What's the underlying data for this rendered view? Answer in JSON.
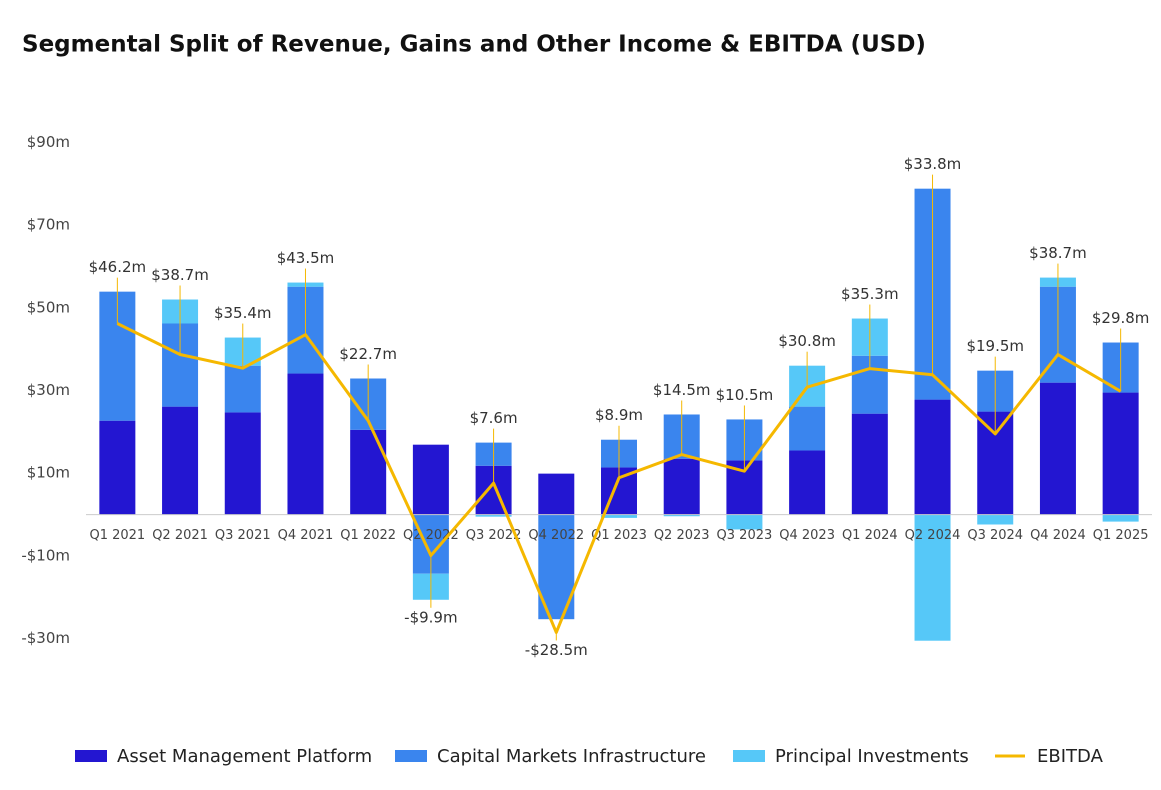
{
  "chart_data": {
    "type": "bar",
    "title": "Segmental Split of Revenue, Gains and Other Income & EBITDA (USD)",
    "categories": [
      "Q1 2021",
      "Q2 2021",
      "Q3 2021",
      "Q4 2021",
      "Q1 2022",
      "Q2 2022",
      "Q3 2022",
      "Q4 2022",
      "Q1 2023",
      "Q2 2023",
      "Q3 2023",
      "Q4 2023",
      "Q1 2024",
      "Q2 2024",
      "Q3 2024",
      "Q4 2024",
      "Q1 2025"
    ],
    "series": [
      {
        "name": "Asset Management Platform",
        "color": "#2316d1",
        "values": [
          22.7,
          26.1,
          24.7,
          34.1,
          20.5,
          16.9,
          11.8,
          9.9,
          11.4,
          13.5,
          13.1,
          15.5,
          24.4,
          27.8,
          24.9,
          31.9,
          29.5
        ]
      },
      {
        "name": "Capital Markets Infrastructure",
        "color": "#3a85ee",
        "values": [
          31.2,
          20.1,
          11.3,
          21.0,
          12.4,
          -14.3,
          5.6,
          -25.3,
          6.7,
          10.7,
          9.9,
          10.6,
          14.0,
          51.0,
          9.9,
          23.2,
          12.1
        ]
      },
      {
        "name": "Principal Investments",
        "color": "#56c8f8",
        "values": [
          0,
          5.8,
          6.8,
          1.0,
          0,
          -6.3,
          -0.5,
          0,
          -0.8,
          -0.4,
          -3.6,
          9.9,
          9.0,
          -30.5,
          -2.4,
          2.2,
          -1.7
        ]
      },
      {
        "name": "EBITDA",
        "type": "line",
        "color": "#f5b800",
        "values": [
          46.2,
          38.7,
          35.4,
          43.5,
          22.7,
          -9.9,
          7.6,
          -28.5,
          8.9,
          14.5,
          10.5,
          30.8,
          35.3,
          33.8,
          19.5,
          38.7,
          29.8
        ],
        "value_labels": [
          "$46.2m",
          "$38.7m",
          "$35.4m",
          "$43.5m",
          "$22.7m",
          "-$9.9m",
          "$7.6m",
          "-$28.5m",
          "$8.9m",
          "$14.5m",
          "$10.5m",
          "$30.8m",
          "$35.3m",
          "$33.8m",
          "$19.5m",
          "$38.7m",
          "$29.8m"
        ]
      }
    ],
    "ylim": [
      -40,
      100
    ],
    "yticks": [
      {
        "value": 90,
        "label": "$90m"
      },
      {
        "value": 70,
        "label": "$70m"
      },
      {
        "value": 50,
        "label": "$50m"
      },
      {
        "value": 30,
        "label": "$30m"
      },
      {
        "value": 10,
        "label": "$10m"
      },
      {
        "value": -10,
        "label": "-$10m"
      },
      {
        "value": -30,
        "label": "-$30m"
      }
    ],
    "stacked": true,
    "legend": "bottom"
  }
}
